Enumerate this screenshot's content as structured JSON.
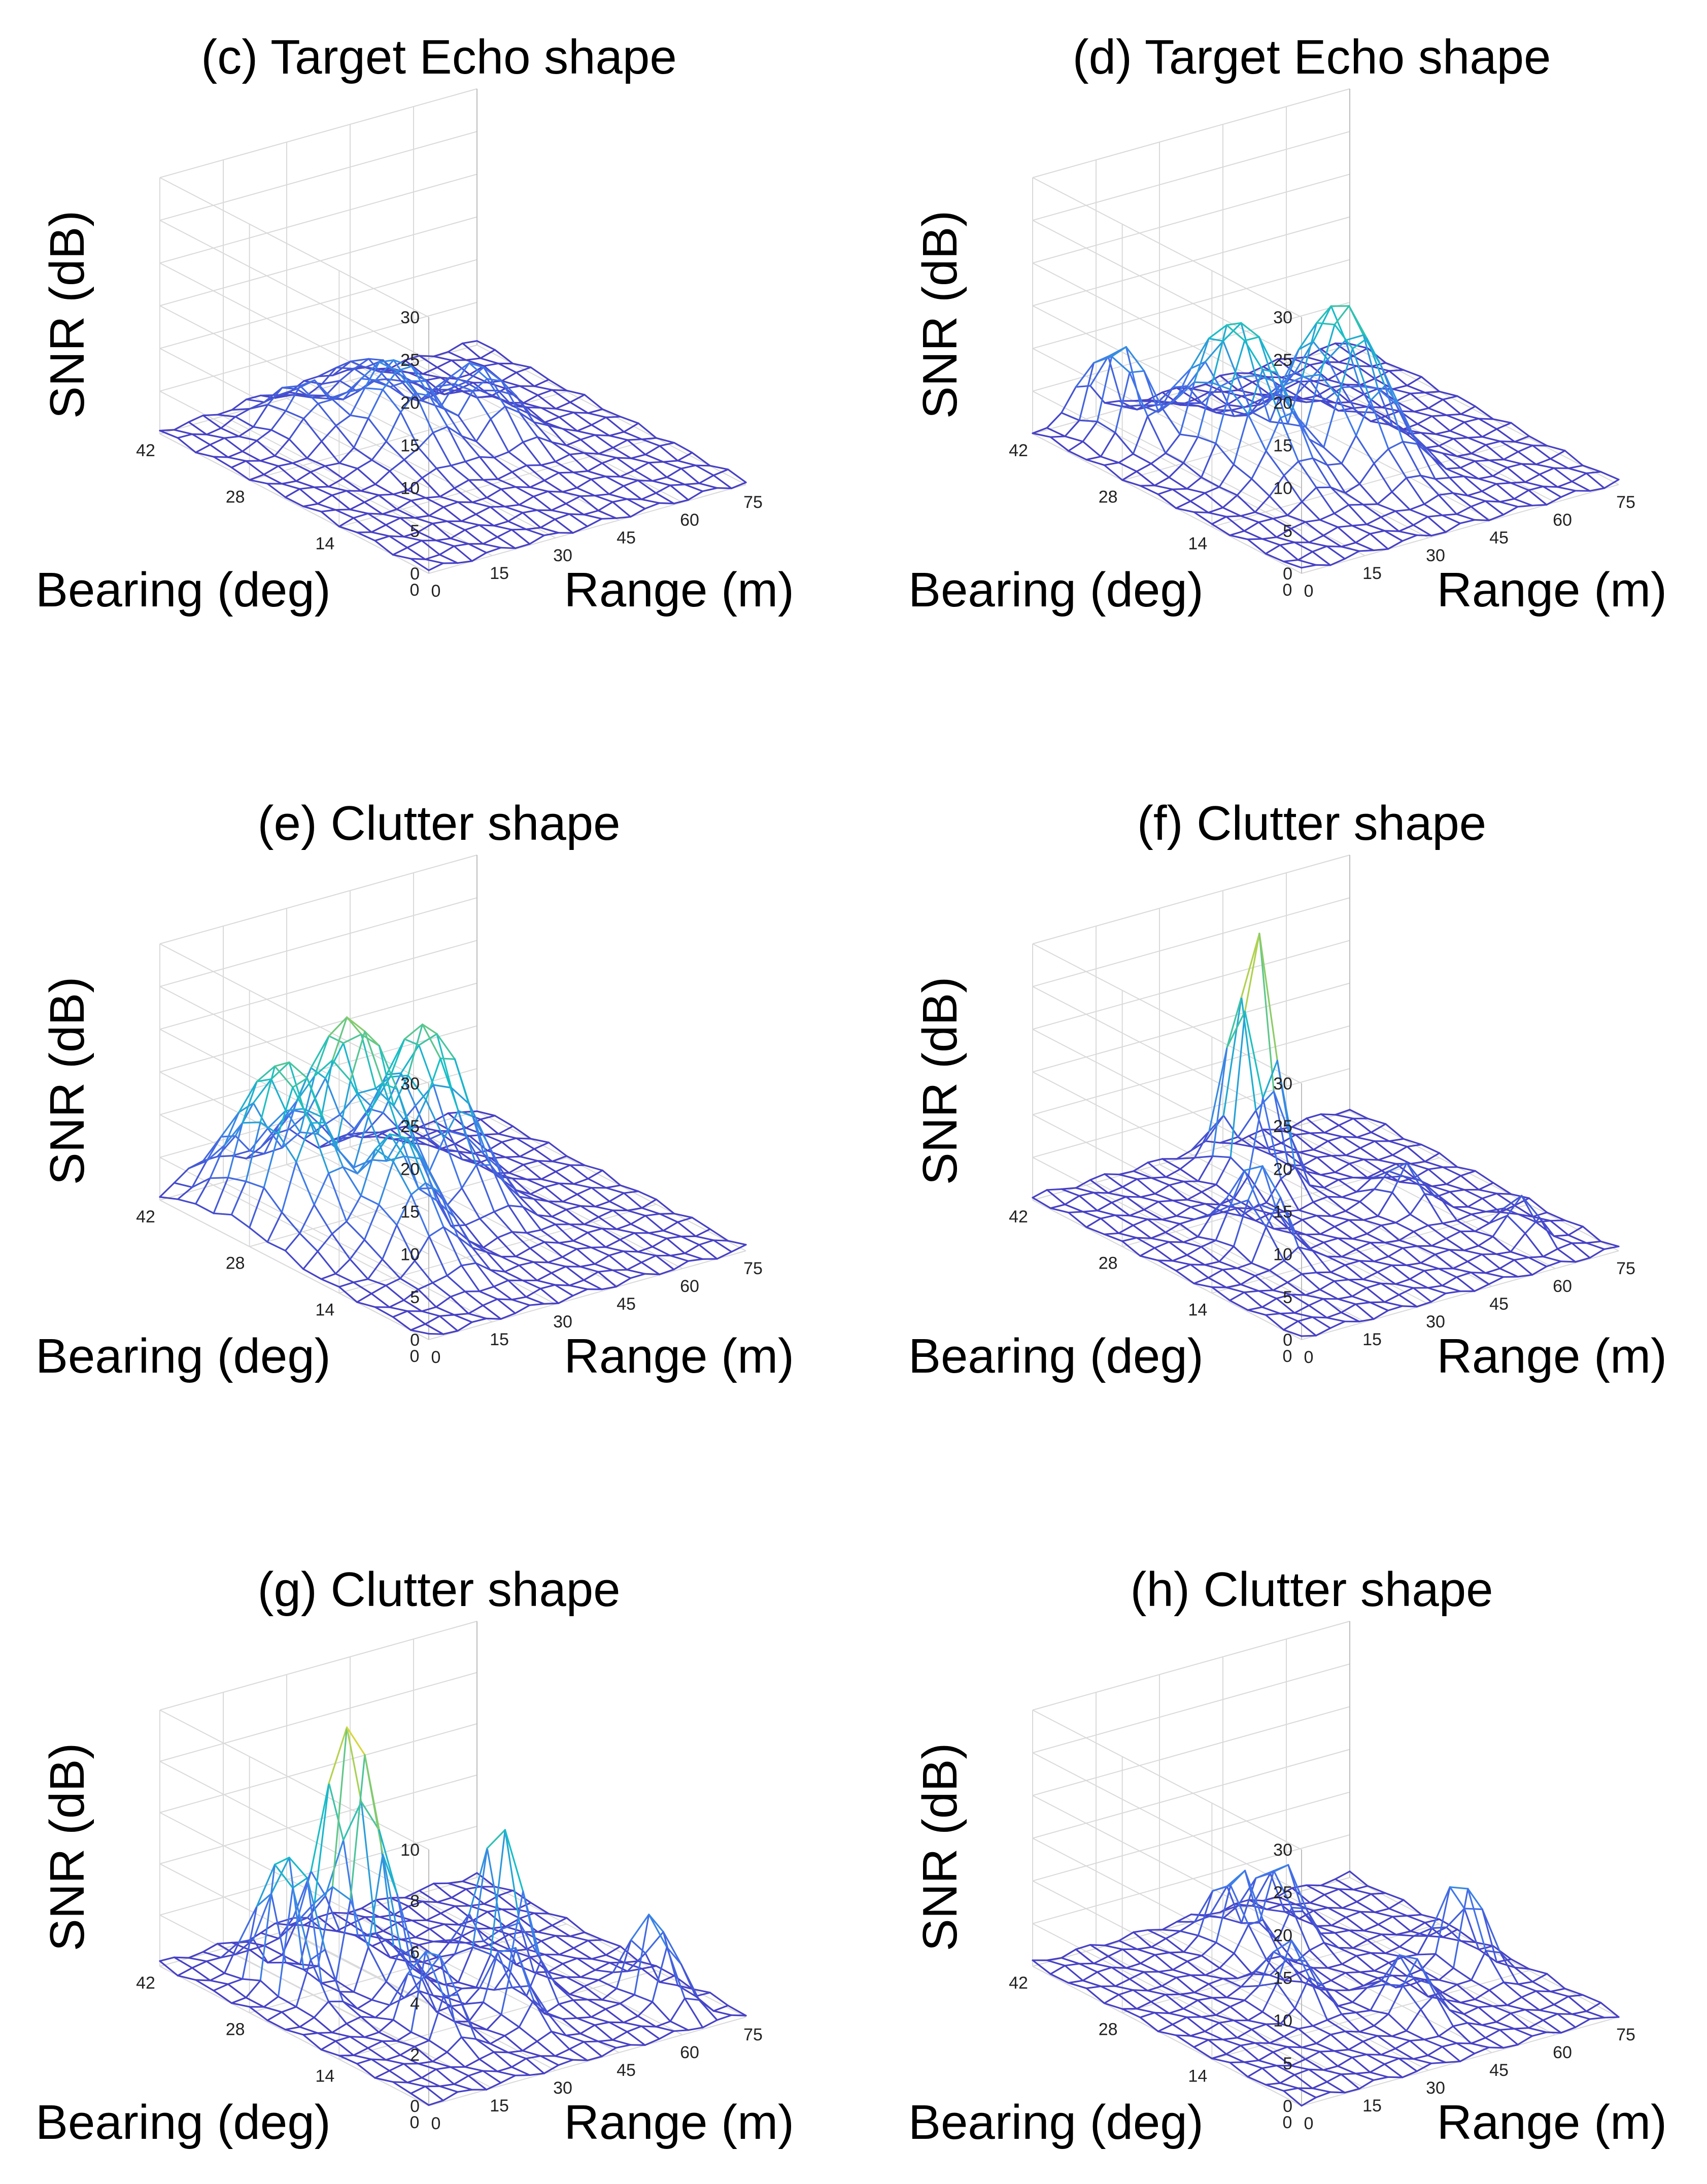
{
  "figure": {
    "rows": 3,
    "cols": 2
  },
  "chart_data": [
    {
      "type": "surface",
      "title": "(c) Target Echo shape",
      "xlabel": "Range (m)",
      "ylabel": "Bearing (deg)",
      "zlabel": "SNR (dB)",
      "xlim": [
        0,
        75
      ],
      "ylim": [
        0,
        42
      ],
      "zlim": [
        0,
        30
      ],
      "xticks": [
        "0",
        "15",
        "30",
        "45",
        "60",
        "75"
      ],
      "yticks": [
        "0",
        "14",
        "28",
        "42"
      ],
      "zticks": [
        "0",
        "5",
        "10",
        "15",
        "20",
        "25",
        "30"
      ],
      "peaks": [
        {
          "range": 32,
          "bearing": 26,
          "snr": 10,
          "width_range": 9,
          "width_bearing": 7
        },
        {
          "range": 48,
          "bearing": 24,
          "snr": 8,
          "width_range": 8,
          "width_bearing": 6
        },
        {
          "range": 22,
          "bearing": 33,
          "snr": 6,
          "width_range": 7,
          "width_bearing": 6
        },
        {
          "range": 40,
          "bearing": 36,
          "snr": 5,
          "width_range": 9,
          "width_bearing": 5
        }
      ]
    },
    {
      "type": "surface",
      "title": "(d) Target Echo shape",
      "xlabel": "Range (m)",
      "ylabel": "Bearing (deg)",
      "zlabel": "SNR (dB)",
      "xlim": [
        0,
        75
      ],
      "ylim": [
        0,
        42
      ],
      "zlim": [
        0,
        30
      ],
      "xticks": [
        "0",
        "15",
        "30",
        "45",
        "60",
        "75"
      ],
      "yticks": [
        "0",
        "14",
        "28",
        "42"
      ],
      "zticks": [
        "0",
        "5",
        "10",
        "15",
        "20",
        "25",
        "30"
      ],
      "peaks": [
        {
          "range": 22,
          "bearing": 24,
          "snr": 17,
          "width_range": 7,
          "width_bearing": 9
        },
        {
          "range": 40,
          "bearing": 20,
          "snr": 18,
          "width_range": 8,
          "width_bearing": 8
        },
        {
          "range": 12,
          "bearing": 36,
          "snr": 12,
          "width_range": 4,
          "width_bearing": 6
        }
      ]
    },
    {
      "type": "surface",
      "title": "(e) Clutter shape",
      "xlabel": "Range (m)",
      "ylabel": "Bearing (deg)",
      "zlabel": "SNR (dB)",
      "xlim": [
        0,
        75
      ],
      "ylim": [
        0,
        42
      ],
      "zlim": [
        0,
        30
      ],
      "xticks": [
        "0",
        "15",
        "30",
        "45",
        "60",
        "75"
      ],
      "yticks": [
        "0",
        "14",
        "28",
        "42"
      ],
      "zticks": [
        "0",
        "5",
        "10",
        "15",
        "20",
        "25",
        "30"
      ],
      "peaks": [
        {
          "range": 12,
          "bearing": 30,
          "snr": 19,
          "width_range": 8,
          "width_bearing": 9
        },
        {
          "range": 28,
          "bearing": 30,
          "snr": 22,
          "width_range": 8,
          "width_bearing": 9
        },
        {
          "range": 42,
          "bearing": 28,
          "snr": 20,
          "width_range": 8,
          "width_bearing": 8
        },
        {
          "range": 20,
          "bearing": 18,
          "snr": 14,
          "width_range": 8,
          "width_bearing": 7
        }
      ]
    },
    {
      "type": "surface",
      "title": "(f) Clutter shape",
      "xlabel": "Range (m)",
      "ylabel": "Bearing (deg)",
      "zlabel": "SNR (dB)",
      "xlim": [
        0,
        75
      ],
      "ylim": [
        0,
        42
      ],
      "zlim": [
        0,
        30
      ],
      "xticks": [
        "0",
        "15",
        "30",
        "45",
        "60",
        "75"
      ],
      "yticks": [
        "0",
        "14",
        "28",
        "42"
      ],
      "zticks": [
        "0",
        "5",
        "10",
        "15",
        "20",
        "25",
        "30"
      ],
      "peaks": [
        {
          "range": 40,
          "bearing": 34,
          "snr": 30,
          "width_range": 4,
          "width_bearing": 4
        },
        {
          "range": 20,
          "bearing": 20,
          "snr": 10,
          "width_range": 4,
          "width_bearing": 5
        },
        {
          "range": 55,
          "bearing": 20,
          "snr": 5,
          "width_range": 4,
          "width_bearing": 4
        },
        {
          "range": 64,
          "bearing": 8,
          "snr": 5,
          "width_range": 3,
          "width_bearing": 3
        }
      ]
    },
    {
      "type": "surface",
      "title": "(g) Clutter shape",
      "xlabel": "Range (m)",
      "ylabel": "Bearing (deg)",
      "zlabel": "SNR (dB)",
      "xlim": [
        0,
        75
      ],
      "ylim": [
        0,
        42
      ],
      "zlim": [
        0,
        10
      ],
      "xticks": [
        "0",
        "15",
        "30",
        "45",
        "60",
        "75"
      ],
      "yticks": [
        "0",
        "14",
        "28",
        "42"
      ],
      "zticks": [
        "0",
        "2",
        "4",
        "6",
        "8",
        "10"
      ],
      "peaks": [
        {
          "range": 28,
          "bearing": 30,
          "snr": 10,
          "width_range": 4,
          "width_bearing": 6
        },
        {
          "range": 12,
          "bearing": 30,
          "snr": 7,
          "width_range": 3,
          "width_bearing": 5
        },
        {
          "range": 48,
          "bearing": 20,
          "snr": 6,
          "width_range": 3,
          "width_bearing": 5
        },
        {
          "range": 66,
          "bearing": 8,
          "snr": 4,
          "width_range": 3,
          "width_bearing": 4
        },
        {
          "range": 22,
          "bearing": 14,
          "snr": 4,
          "width_range": 3,
          "width_bearing": 4
        },
        {
          "range": 38,
          "bearing": 12,
          "snr": 3,
          "width_range": 3,
          "width_bearing": 4
        }
      ]
    },
    {
      "type": "surface",
      "title": "(h) Clutter shape",
      "xlabel": "Range (m)",
      "ylabel": "Bearing (deg)",
      "zlabel": "SNR (dB)",
      "xlim": [
        0,
        75
      ],
      "ylim": [
        0,
        42
      ],
      "zlim": [
        0,
        30
      ],
      "xticks": [
        "0",
        "15",
        "30",
        "45",
        "60",
        "75"
      ],
      "yticks": [
        "0",
        "14",
        "28",
        "42"
      ],
      "zticks": [
        "0",
        "5",
        "10",
        "15",
        "20",
        "25",
        "30"
      ],
      "peaks": [
        {
          "range": 66,
          "bearing": 18,
          "snr": 12,
          "width_range": 3,
          "width_bearing": 4
        },
        {
          "range": 36,
          "bearing": 34,
          "snr": 10,
          "width_range": 4,
          "width_bearing": 4
        },
        {
          "range": 46,
          "bearing": 34,
          "snr": 10,
          "width_range": 4,
          "width_bearing": 4
        },
        {
          "range": 28,
          "bearing": 20,
          "snr": 8,
          "width_range": 4,
          "width_bearing": 4
        },
        {
          "range": 44,
          "bearing": 12,
          "snr": 7,
          "width_range": 4,
          "width_bearing": 4
        }
      ]
    }
  ]
}
